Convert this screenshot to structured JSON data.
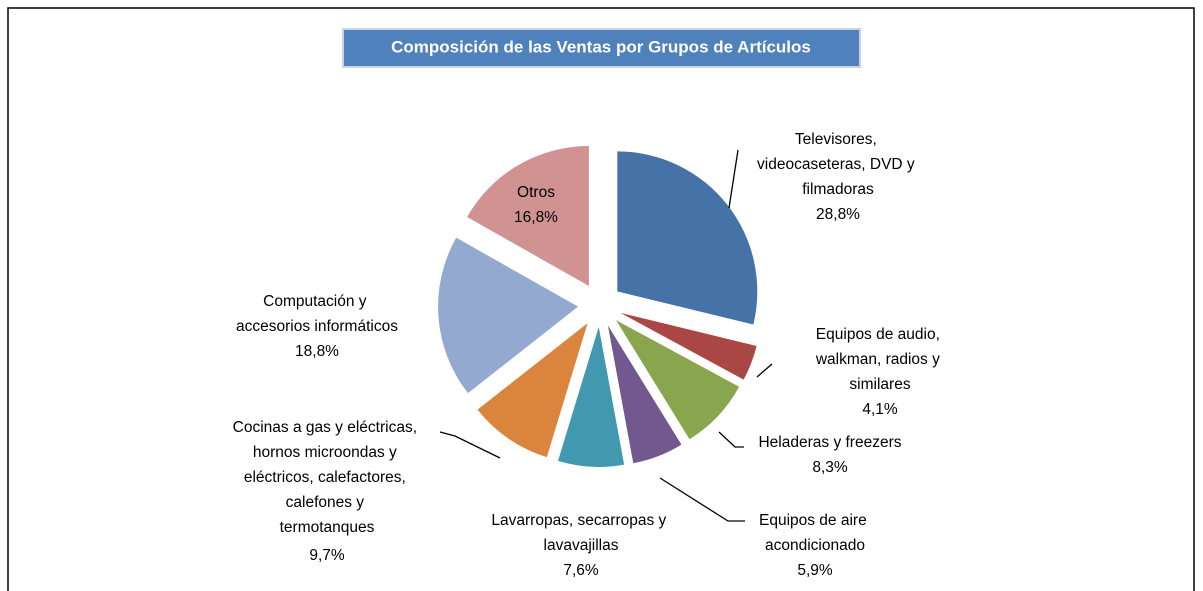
{
  "chart_data": {
    "type": "pie",
    "title": "Composición de las Ventas por Grupos de Artículos",
    "categories": [
      "Televisores, videocaseteras, DVD y filmadoras",
      "Equipos de audio, walkman, radios y similares",
      "Heladeras y freezers",
      "Equipos de aire acondicionado",
      "Lavarropas, secarropas y lavavajillas",
      "Cocinas a gas y eléctricas, hornos microondas y eléctricos, calefactores, calefones y termotanques",
      "Computación y accesorios informáticos",
      "Otros"
    ],
    "values": [
      28.8,
      4.1,
      8.3,
      5.9,
      7.6,
      9.7,
      18.8,
      16.8
    ],
    "value_labels": [
      "28,8%",
      "4,1%",
      "8,3%",
      "5,9%",
      "7,6%",
      "9,7%",
      "18,8%",
      "16,8%"
    ],
    "colors": [
      "#4572a7",
      "#aa4643",
      "#89a54e",
      "#71588f",
      "#4198af",
      "#db843d",
      "#93a9cf",
      "#d19392"
    ]
  }
}
